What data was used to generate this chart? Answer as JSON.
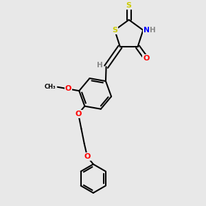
{
  "bg_color": "#e8e8e8",
  "bond_color": "#000000",
  "bond_width": 1.5,
  "atom_colors": {
    "S": "#cccc00",
    "N": "#0000ff",
    "O": "#ff0000",
    "H": "#888888"
  },
  "figsize": [
    3.0,
    3.0
  ],
  "dpi": 100,
  "xlim": [
    0,
    10
  ],
  "ylim": [
    0,
    10
  ]
}
